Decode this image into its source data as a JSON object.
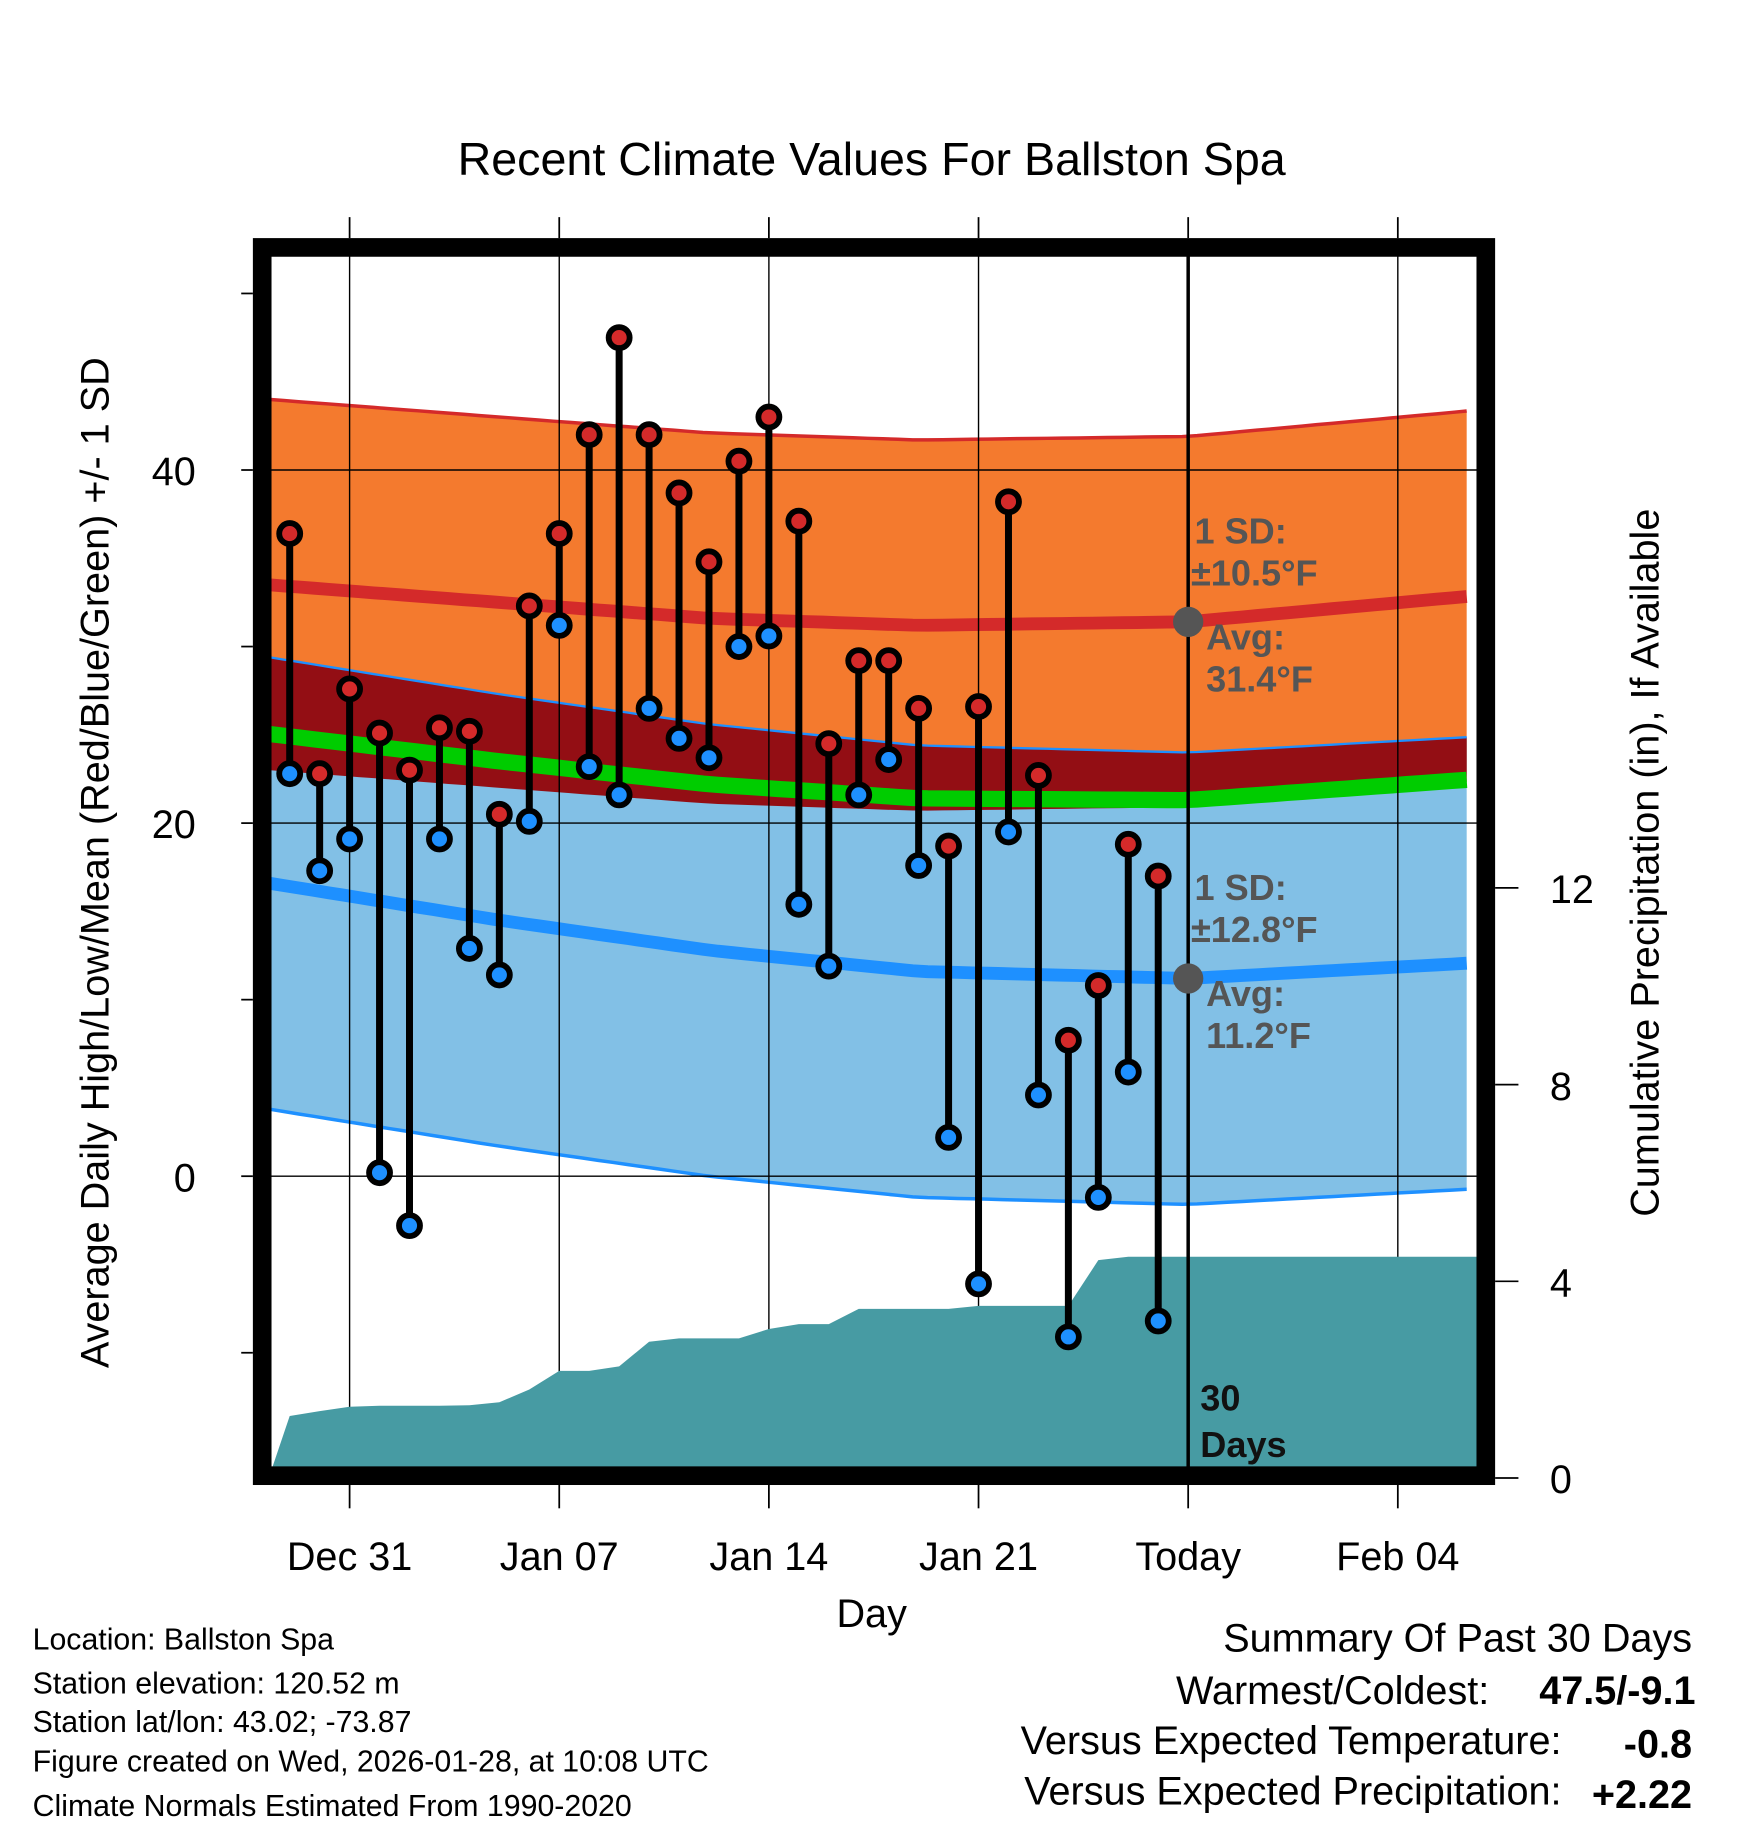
{
  "chart_data": {
    "type": "line",
    "title": "Recent Climate Values For Ballston Spa",
    "xlabel": "Day",
    "ylabel": "Average Daily High/Low/Mean (Red/Blue/Green) +/- 1 SD",
    "y2label": "Cumulative Precipitation (in), If Available",
    "ylim": [
      -17,
      52.6
    ],
    "y2lim": [
      0,
      16.5
    ],
    "yticks": [
      "0",
      "20",
      "40"
    ],
    "yticks_values": [
      0,
      20,
      40
    ],
    "yminor_values": [
      -10,
      10,
      30,
      50
    ],
    "y2ticks": [
      "0",
      "4",
      "8",
      "12"
    ],
    "y2ticks_values": [
      0,
      4,
      8,
      12
    ],
    "xticks": [
      "Dec 31",
      "Jan 07",
      "Jan 14",
      "Jan 21",
      "Today",
      "Feb 04"
    ],
    "xticks_days": [
      0,
      7,
      14,
      21,
      28,
      35
    ],
    "xlim_days": [
      -2.7,
      37.7
    ],
    "days": [
      "Dec 29",
      "Dec 30",
      "Dec 31",
      "Jan 01",
      "Jan 02",
      "Jan 03",
      "Jan 04",
      "Jan 05",
      "Jan 06",
      "Jan 07",
      "Jan 08",
      "Jan 09",
      "Jan 10",
      "Jan 11",
      "Jan 12",
      "Jan 13",
      "Jan 14",
      "Jan 15",
      "Jan 16",
      "Jan 17",
      "Jan 18",
      "Jan 19",
      "Jan 20",
      "Jan 21",
      "Jan 22",
      "Jan 23",
      "Jan 24",
      "Jan 25",
      "Jan 26",
      "Jan 27"
    ],
    "day_offsets": [
      -2,
      -1,
      0,
      1,
      2,
      3,
      4,
      5,
      6,
      7,
      8,
      9,
      10,
      11,
      12,
      13,
      14,
      15,
      16,
      17,
      18,
      19,
      20,
      21,
      22,
      23,
      24,
      25,
      26,
      27
    ],
    "series": [
      {
        "name": "High",
        "color": "#d42a2a",
        "values": [
          36.4,
          22.8,
          27.6,
          25.1,
          23.0,
          25.4,
          25.2,
          20.5,
          32.3,
          36.4,
          42.0,
          47.5,
          42.0,
          38.7,
          34.8,
          40.5,
          43.0,
          37.1,
          24.5,
          29.2,
          29.2,
          26.5,
          18.7,
          26.6,
          38.2,
          22.7,
          7.7,
          10.8,
          18.8,
          17.0
        ]
      },
      {
        "name": "Low",
        "color": "#1e90ff",
        "values": [
          22.8,
          17.3,
          19.1,
          0.2,
          -2.8,
          19.1,
          12.9,
          11.4,
          20.1,
          31.2,
          23.2,
          21.6,
          26.5,
          24.8,
          23.7,
          30.0,
          30.6,
          15.4,
          11.9,
          21.6,
          23.6,
          17.6,
          2.2,
          -6.1,
          19.5,
          4.6,
          -9.1,
          -1.2,
          5.9,
          -8.2
        ]
      },
      {
        "name": "Cumulative Precipitation",
        "color": "#479ba3",
        "values": [
          1.26,
          1.36,
          1.45,
          1.47,
          1.47,
          1.47,
          1.48,
          1.54,
          1.8,
          2.18,
          2.18,
          2.27,
          2.77,
          2.84,
          2.84,
          2.84,
          3.03,
          3.13,
          3.13,
          3.44,
          3.44,
          3.44,
          3.44,
          3.5,
          3.5,
          3.5,
          3.5,
          4.43,
          4.5,
          4.5
        ]
      }
    ],
    "normals": {
      "days": [
        -2.7,
        5,
        12,
        19,
        28,
        37.7
      ],
      "mean_high": [
        33.5,
        32.5,
        31.6,
        31.2,
        31.4,
        32.9
      ],
      "sd_high": 10.5,
      "mean_low": [
        16.6,
        14.5,
        12.8,
        11.6,
        11.2,
        12.1
      ],
      "sd_low": 12.8
    },
    "colors": {
      "orange": "#f47a2e",
      "lightblue": "#82c0e6",
      "overlap": "#930e14",
      "green": "#00cc00",
      "precip": "#479ba3",
      "high_line": "#d42a2a",
      "low_line": "#1e90ff"
    },
    "annotations": {
      "high_sd_label": "1 SD:",
      "high_sd_value": "±10.5°F",
      "high_avg_label": "Avg:",
      "high_avg_value": "31.4°F",
      "low_sd_label": "1 SD:",
      "low_sd_value": "±12.8°F",
      "low_avg_label": "Avg:",
      "low_avg_value": "11.2°F",
      "period_1": "30",
      "period_2": "Days"
    }
  },
  "info": {
    "location": "Location: Ballston Spa",
    "elevation": "Station elevation: 120.52 m",
    "latlon": "Station lat/lon: 43.02; -73.87",
    "created": "Figure created on Wed, 2026-01-28, at 10:08 UTC",
    "normals": "Climate Normals Estimated From 1990-2020"
  },
  "summary": {
    "title": "Summary Of Past 30 Days",
    "warmest_label": "Warmest/Coldest:",
    "warmest_value": "47.5/-9.1",
    "temp_label": "Versus Expected Temperature:",
    "temp_value": "-0.8",
    "temp_color": "#1e90ff",
    "precip_label": "Versus Expected Precipitation:",
    "precip_value": "+2.22",
    "precip_color": "#22bb22"
  }
}
